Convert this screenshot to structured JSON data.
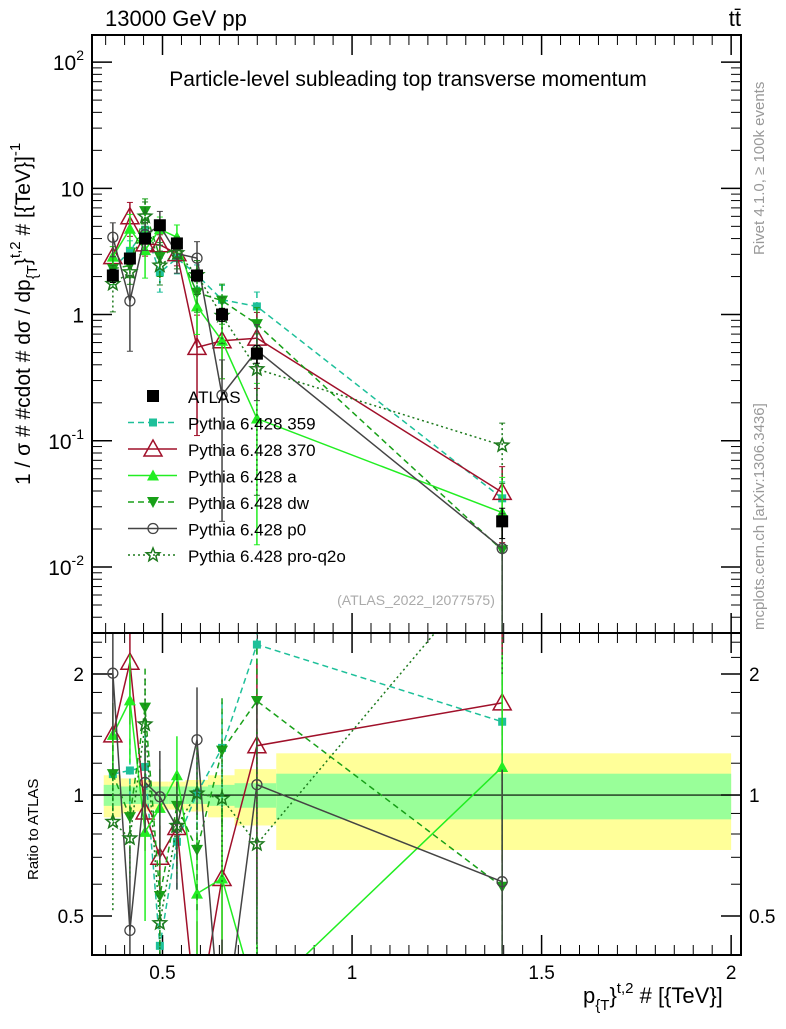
{
  "header": {
    "left": "13000 GeV pp",
    "right": "tt̄"
  },
  "side_texts": {
    "rivet": "Rivet 4.1.0, ≥ 100k events",
    "mcplots": "mcplots.cern.ch [arXiv:1306.3436]"
  },
  "analysis_id": "(ATLAS_2022_I2077575)",
  "chart_data": [
    {
      "type": "line",
      "panel": "main",
      "title": "Particle-level subleading top transverse momentum",
      "ylabel_parts": [
        "1 / σ # #cdot # dσ / dp",
        "{T",
        "}",
        "t,2",
        " # [{TeV}]",
        "-1"
      ],
      "yscale": "log",
      "ylim": [
        0.003,
        164
      ],
      "xlim": [
        0.314,
        2.026
      ],
      "yticks": [
        {
          "v": 0.01,
          "b": "10",
          "e": "-2"
        },
        {
          "v": 0.1,
          "b": "10",
          "e": "-1"
        },
        {
          "v": 1,
          "b": "1",
          "e": ""
        },
        {
          "v": 10,
          "b": "10",
          "e": ""
        },
        {
          "v": 100,
          "b": "10",
          "e": "2"
        }
      ],
      "legend_position": "center-left",
      "x": [
        0.369,
        0.414,
        0.454,
        0.493,
        0.538,
        0.591,
        0.657,
        0.749,
        1.396
      ],
      "bin_edges": [
        0.345,
        0.39,
        0.43,
        0.47,
        0.515,
        0.56,
        0.62,
        0.69,
        0.8,
        2.0
      ],
      "series": [
        {
          "name": "ATLAS",
          "color": "#000000",
          "marker": "square",
          "dash": "none",
          "values": [
            2.04,
            2.78,
            4.0,
            5.1,
            3.66,
            2.04,
            1.0,
            0.49,
            0.023
          ],
          "stat_rel": [
            0.06,
            0.05,
            0.05,
            0.05,
            0.05,
            0.05,
            0.06,
            0.07,
            0.13
          ],
          "total_rel": [
            0.12,
            0.1,
            0.09,
            0.08,
            0.08,
            0.09,
            0.12,
            0.16,
            0.27
          ]
        },
        {
          "name": "Pythia 6.428 359",
          "color": "#1ec09a",
          "marker": "smallsquare",
          "dash": "6,4",
          "values": [
            2.3,
            3.2,
            4.7,
            2.15,
            2.8,
            2.06,
            1.31,
            1.16,
            0.035
          ],
          "err_rel": [
            0.25,
            0.2,
            0.2,
            0.3,
            0.25,
            0.2,
            0.3,
            0.3,
            0.35
          ]
        },
        {
          "name": "Pythia 6.428 370",
          "color": "#a0102a",
          "marker": "triangle-open",
          "dash": "none",
          "values": [
            2.88,
            5.95,
            3.63,
            3.57,
            3.04,
            0.55,
            0.62,
            0.65,
            0.039
          ],
          "err_rel": [
            0.2,
            0.3,
            0.2,
            0.2,
            0.2,
            0.8,
            0.5,
            0.6,
            0.6
          ]
        },
        {
          "name": "Pythia 6.428 a",
          "color": "#22ee22",
          "marker": "triangle",
          "dash": "none",
          "values": [
            2.88,
            4.78,
            3.24,
            4.74,
            4.1,
            1.16,
            0.62,
            0.15,
            0.027
          ],
          "err_rel": [
            0.2,
            0.3,
            0.4,
            0.25,
            0.25,
            0.4,
            0.5,
            0.9,
            0.9
          ]
        },
        {
          "name": "Pythia 6.428 dw",
          "color": "#18a018",
          "marker": "triangle-down",
          "dash": "6,4",
          "values": [
            2.3,
            2.45,
            6.6,
            2.86,
            3.44,
            1.49,
            1.29,
            0.84,
            0.0136
          ],
          "err_rel": [
            0.25,
            0.2,
            0.25,
            0.3,
            0.2,
            0.3,
            0.35,
            0.35,
            0.9
          ]
        },
        {
          "name": "Pythia 6.428 p0",
          "color": "#444444",
          "marker": "circle-open",
          "dash": "none",
          "values": [
            4.1,
            1.28,
            4.3,
            5.05,
            3.04,
            2.8,
            0.23,
            0.52,
            0.014
          ],
          "err_rel": [
            0.3,
            0.6,
            0.25,
            0.3,
            0.3,
            0.35,
            0.9,
            0.6,
            0.9
          ]
        },
        {
          "name": "Pythia 6.428 pro-q2o",
          "color": "#1d7a1d",
          "marker": "star-open",
          "dash": "2,3",
          "values": [
            1.75,
            2.17,
            6.0,
            2.45,
            3.07,
            2.06,
            0.98,
            0.37,
            0.092
          ],
          "err_rel": [
            0.4,
            0.2,
            0.3,
            0.3,
            0.25,
            0.3,
            0.4,
            0.9,
            0.5
          ]
        }
      ]
    },
    {
      "type": "line",
      "panel": "ratio",
      "ylabel": "Ratio to ATLAS",
      "yscale": "log",
      "ylim": [
        0.4,
        2.53
      ],
      "yticks": [
        {
          "v": 0.5,
          "label": "0.5"
        },
        {
          "v": 1,
          "label": "1"
        },
        {
          "v": 2,
          "label": "2"
        }
      ],
      "xticks": [
        {
          "v": 0.5,
          "label": "0.5"
        },
        {
          "v": 1,
          "label": "1"
        },
        {
          "v": 1.5,
          "label": "1.5"
        },
        {
          "v": 2,
          "label": "2"
        }
      ],
      "xlabel_parts": [
        "p",
        "{T",
        "}",
        "t,2",
        " # [{TeV}]"
      ],
      "band_colors": {
        "stat": "#99ff99",
        "total": "#ffff99"
      }
    }
  ]
}
